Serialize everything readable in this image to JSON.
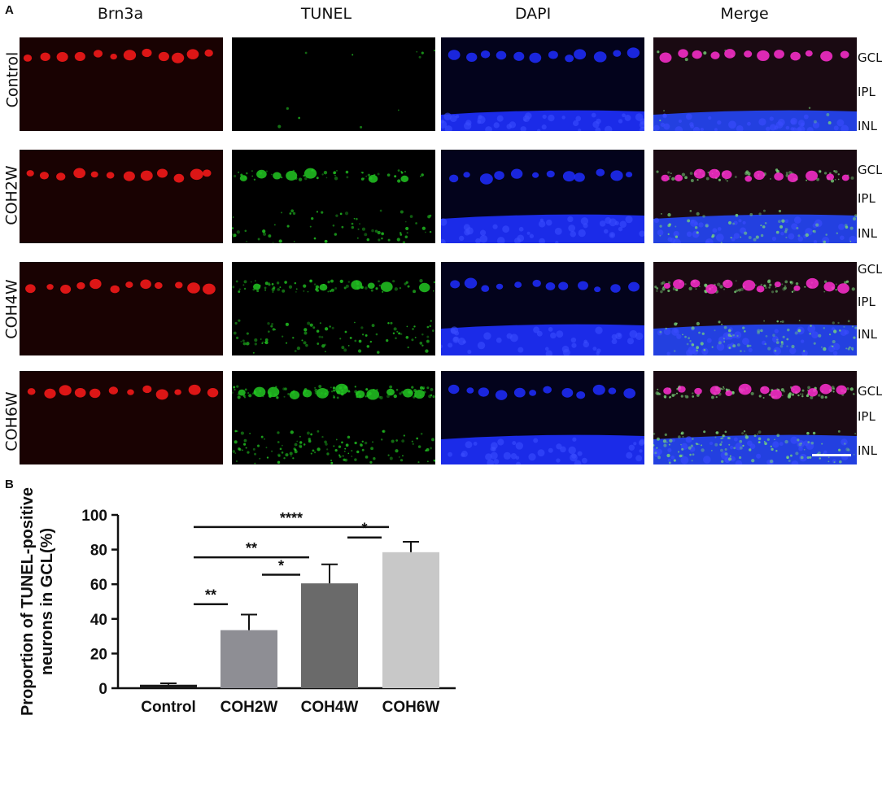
{
  "panel_a": {
    "letter": "A",
    "columns": [
      "Brn3a",
      "TUNEL",
      "DAPI",
      "Merge"
    ],
    "rows": [
      "Control",
      "COH2W",
      "COH4W",
      "COH6W"
    ],
    "layers": [
      "GCL",
      "IPL",
      "INL"
    ],
    "channel_colors": {
      "brn3a": "#ff1a1a",
      "tunel": "#22c722",
      "dapi": "#1f2dff",
      "merge_nucleus": "#ff2fd0"
    },
    "tunel_intensity": [
      0.05,
      0.45,
      0.65,
      0.85
    ]
  },
  "panel_b": {
    "letter": "B"
  },
  "chart_data": {
    "type": "bar",
    "categories": [
      "Control",
      "COH2W",
      "COH4W",
      "COH6W"
    ],
    "values": [
      2,
      33.5,
      60.5,
      78.5
    ],
    "errors": [
      0.8,
      9,
      11,
      6
    ],
    "colors": [
      "#1a1a1a",
      "#8e8e94",
      "#6a6a6a",
      "#c8c8c8"
    ],
    "ylabel_line1": "Proportion of TUNEL-positive",
    "ylabel_line2": "neurons in GCL(%)",
    "ylim": [
      0,
      100
    ],
    "yticks": [
      0,
      20,
      40,
      60,
      80,
      100
    ],
    "significance": [
      {
        "from": 0,
        "to": 1,
        "y": 48.5,
        "label": "**"
      },
      {
        "from": 1,
        "to": 2,
        "y": 65.5,
        "label": "*"
      },
      {
        "from": 2,
        "to": 3,
        "y": 87,
        "label": "*"
      },
      {
        "from": 0,
        "to": 2,
        "y": 75.5,
        "label": "**"
      },
      {
        "from": 0,
        "to": 3,
        "y": 93,
        "label": "****"
      }
    ]
  }
}
